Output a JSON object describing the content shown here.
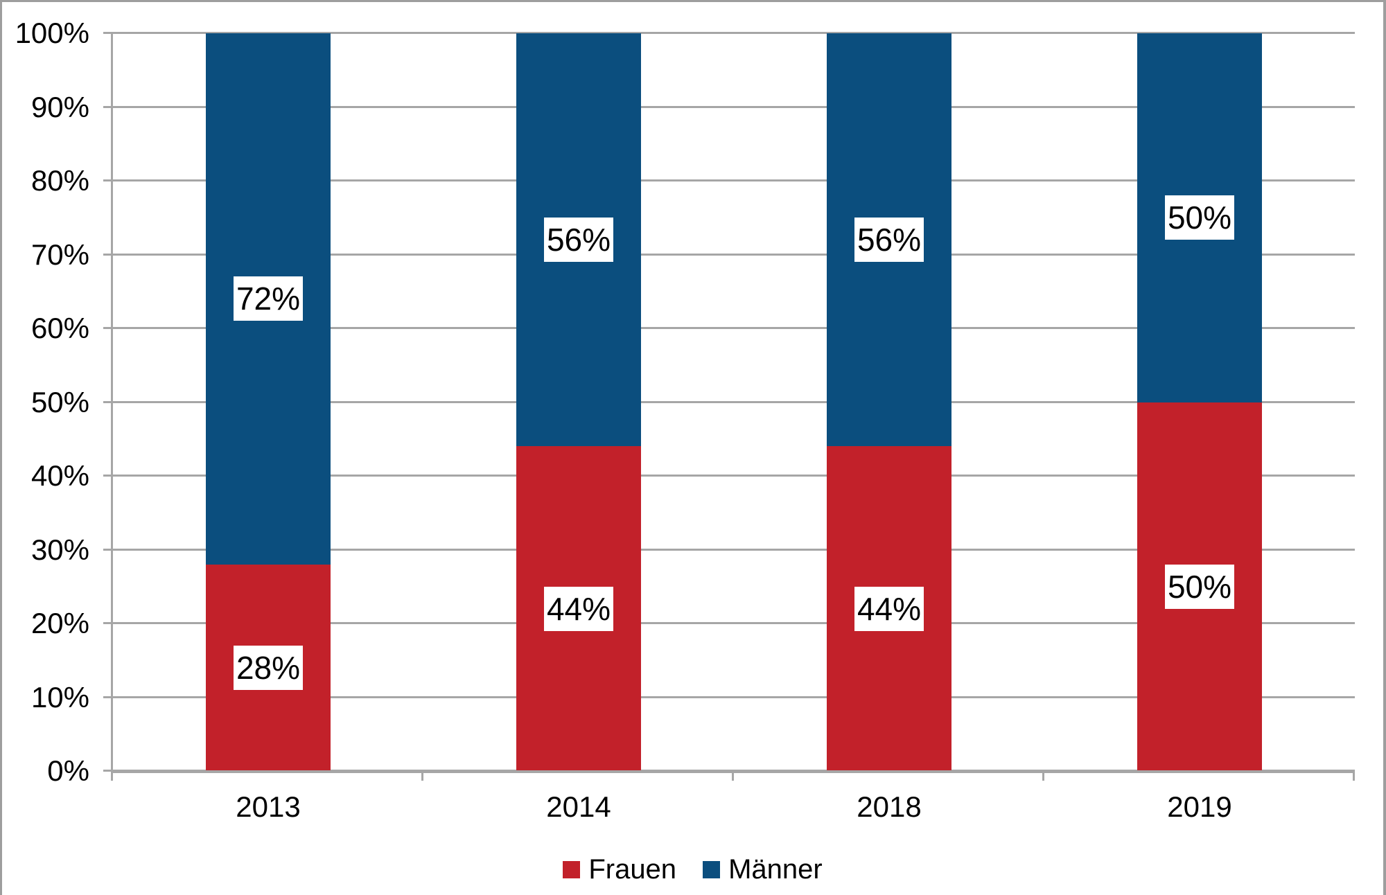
{
  "chart_data": {
    "type": "bar",
    "stacked": true,
    "orientation": "vertical",
    "title": "",
    "xlabel": "",
    "ylabel": "",
    "categories": [
      "2013",
      "2014",
      "2018",
      "2019"
    ],
    "series": [
      {
        "name": "Frauen",
        "color": "#C2212A",
        "values": [
          28,
          44,
          44,
          50
        ],
        "labels": [
          "28%",
          "44%",
          "44%",
          "50%"
        ]
      },
      {
        "name": "Männer",
        "color": "#0B4E7E",
        "values": [
          72,
          56,
          56,
          50
        ],
        "labels": [
          "72%",
          "56%",
          "56%",
          "50%"
        ]
      }
    ],
    "y_tick_labels": [
      "0%",
      "10%",
      "20%",
      "30%",
      "40%",
      "50%",
      "60%",
      "70%",
      "80%",
      "90%",
      "100%"
    ],
    "ylim": [
      0,
      100
    ],
    "grid": true,
    "legend_position": "bottom",
    "colors": {
      "grid": "#A6A6A6",
      "axis": "#A6A6A6",
      "label_box": "#FFFFFF",
      "text": "#000000"
    }
  }
}
